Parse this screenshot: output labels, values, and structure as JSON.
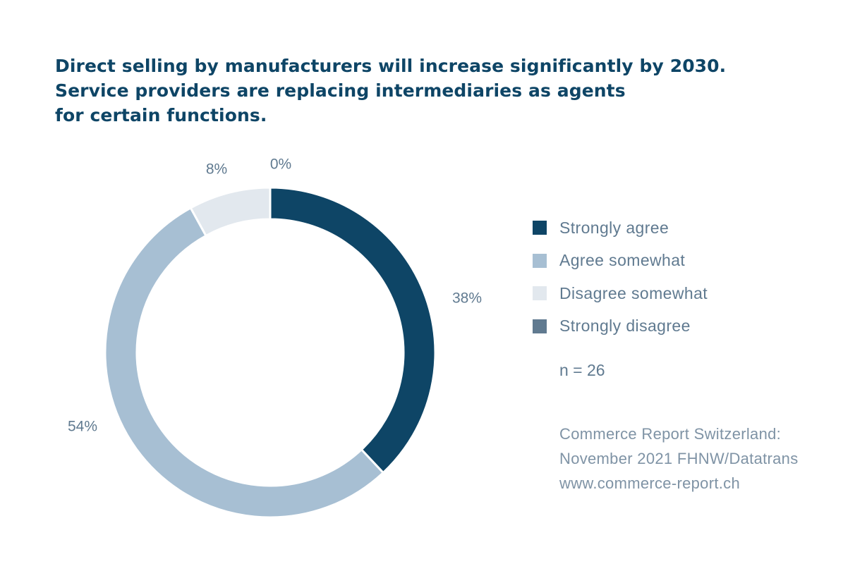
{
  "title_lines": [
    "Direct selling by manufacturers will increase significantly by 2030.",
    "Service providers are replacing intermediaries as agents",
    "for certain functions."
  ],
  "chart_data": {
    "type": "pie",
    "style": "donut",
    "categories": [
      "Strongly agree",
      "Agree somewhat",
      "Disagree somewhat",
      "Strongly disagree"
    ],
    "values": [
      38,
      54,
      8,
      0
    ],
    "labels": [
      "38%",
      "54%",
      "8%",
      "0%"
    ],
    "colors": [
      "#0e4566",
      "#a7bfd3",
      "#e2e8ee",
      "#607a90"
    ],
    "legend_position": "right"
  },
  "n_label": "n = 26",
  "source_lines": [
    "Commerce Report Switzerland:",
    "November 2021 FHNW/Datatrans",
    "www.commerce-report.ch"
  ]
}
